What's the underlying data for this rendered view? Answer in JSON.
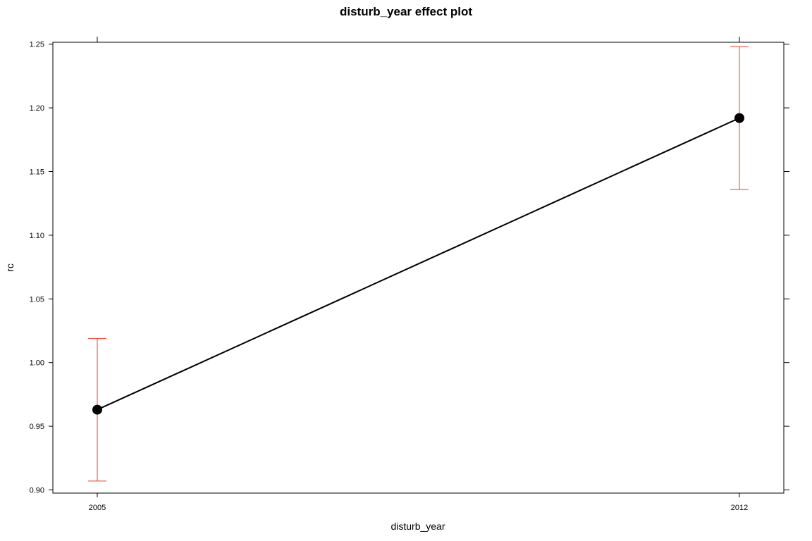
{
  "chart_data": {
    "type": "line",
    "title": "disturb_year effect plot",
    "xlabel": "disturb_year",
    "ylabel": "rc",
    "categories": [
      "2005",
      "2012"
    ],
    "series": [
      {
        "values": [
          0.963,
          1.192
        ],
        "lower": [
          0.907,
          1.136
        ],
        "upper": [
          1.019,
          1.248
        ]
      }
    ],
    "ylim": [
      0.8975,
      1.2515
    ],
    "yticks": [
      "0.90",
      "0.95",
      "1.00",
      "1.05",
      "1.10",
      "1.15",
      "1.20",
      "1.25"
    ],
    "grid": false,
    "legend": "none",
    "colors": {
      "line": "#000000",
      "points": "#000000",
      "error_bars": "#e8412f",
      "frame": "#000000"
    }
  }
}
